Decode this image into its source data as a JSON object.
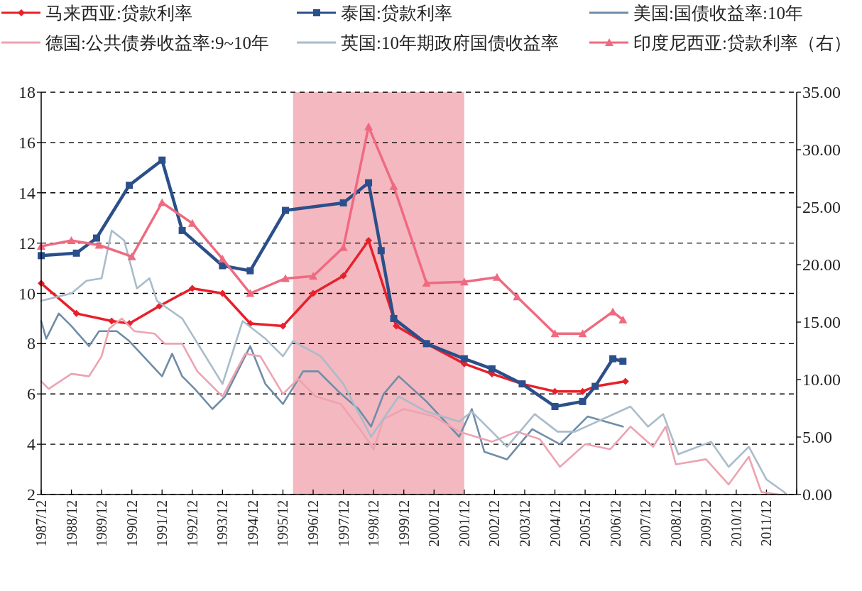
{
  "chart_data": {
    "type": "line",
    "xlim": [
      "1987-12",
      "2012-12"
    ],
    "xticks": [
      {
        "value": "1987-12",
        "label": "1987/12"
      },
      {
        "value": "1988-12",
        "label": "1988/12"
      },
      {
        "value": "1989-12",
        "label": "1989/12"
      },
      {
        "value": "1990-12",
        "label": "1990/12"
      },
      {
        "value": "1991-12",
        "label": "1991/12"
      },
      {
        "value": "1992-12",
        "label": "1992/12"
      },
      {
        "value": "1993-12",
        "label": "1993/12"
      },
      {
        "value": "1994-12",
        "label": "1994/12"
      },
      {
        "value": "1995-12",
        "label": "1995/12"
      },
      {
        "value": "1996-12",
        "label": "1996/12"
      },
      {
        "value": "1997-12",
        "label": "1997/12"
      },
      {
        "value": "1998-12",
        "label": "1998/12"
      },
      {
        "value": "1999-12",
        "label": "1999/12"
      },
      {
        "value": "2000-12",
        "label": "2000/12"
      },
      {
        "value": "2001-12",
        "label": "2001/12"
      },
      {
        "value": "2002-12",
        "label": "2002/12"
      },
      {
        "value": "2003-12",
        "label": "2003/12"
      },
      {
        "value": "2004-12",
        "label": "2004/12"
      },
      {
        "value": "2005-12",
        "label": "2005/12"
      },
      {
        "value": "2006-12",
        "label": "2006/12"
      },
      {
        "value": "2007-12",
        "label": "2007/12"
      },
      {
        "value": "2008-12",
        "label": "2008/12"
      },
      {
        "value": "2009-12",
        "label": "2009/12"
      },
      {
        "value": "2010-12",
        "label": "2010/12"
      },
      {
        "value": "2011-12",
        "label": "2011/12"
      },
      {
        "value": "2012-12",
        "label": null
      }
    ],
    "ylim": [
      2,
      18
    ],
    "yticks": [
      2,
      4,
      6,
      8,
      10,
      12,
      14,
      16,
      18
    ],
    "y2lim": [
      0,
      35
    ],
    "y2ticks": [
      {
        "value": 0,
        "label": "0.00"
      },
      {
        "value": 5,
        "label": "5.00"
      },
      {
        "value": 10,
        "label": "10.00"
      },
      {
        "value": 15,
        "label": "15.00"
      },
      {
        "value": 20,
        "label": "20.00"
      },
      {
        "value": 25,
        "label": "25.00"
      },
      {
        "value": 30,
        "label": "30.00"
      },
      {
        "value": 35,
        "label": "35.00"
      }
    ],
    "grid": "y",
    "legend": "top",
    "line_style": "solid",
    "bands": [
      {
        "axis": "x",
        "from": "1996-04",
        "to": "2001-12",
        "color": "#f4b8c0"
      }
    ],
    "series": [
      {
        "name": "马来西亚:贷款利率",
        "color": "#e8202a",
        "marker": "diamond",
        "x": [
          "1987-12",
          "1989-02",
          "1990-04",
          "1990-11",
          "1991-11",
          "1992-12",
          "1993-12",
          "1994-11",
          "1995-12",
          "1996-12",
          "1997-12",
          "1998-10",
          "1999-09",
          "2000-09",
          "2001-12",
          "2002-11",
          "2003-11",
          "2004-12",
          "2005-11",
          "2006-04",
          "2007-04"
        ],
        "values": [
          10.4,
          9.2,
          8.9,
          8.8,
          9.5,
          10.2,
          10.0,
          8.8,
          8.7,
          10.0,
          10.7,
          12.1,
          8.7,
          8.0,
          7.2,
          6.8,
          6.4,
          6.1,
          6.1,
          6.3,
          6.5
        ]
      },
      {
        "name": "泰国:贷款利率",
        "color": "#2b4f8a",
        "marker": "square",
        "x": [
          "1987-12",
          "1989-02",
          "1989-10",
          "1990-11",
          "1991-12",
          "1992-08",
          "1993-12",
          "1994-11",
          "1996-01",
          "1997-12",
          "1998-10",
          "1999-03",
          "1999-08",
          "2000-09",
          "2001-12",
          "2002-11",
          "2003-11",
          "2004-12",
          "2005-11",
          "2006-04",
          "2006-11",
          "2007-03"
        ],
        "values": [
          11.5,
          11.6,
          12.2,
          14.3,
          15.3,
          12.5,
          11.1,
          10.9,
          13.3,
          13.6,
          14.4,
          11.7,
          9.0,
          8.0,
          7.4,
          7.0,
          6.4,
          5.5,
          5.7,
          6.3,
          7.4,
          7.3
        ]
      },
      {
        "name": "美国:国债收益率:10年",
        "color": "#6f8da8",
        "marker": "none",
        "x": [
          "1987-12",
          "1988-02",
          "1988-07",
          "1988-12",
          "1989-07",
          "1989-11",
          "1990-06",
          "1990-11",
          "1991-12",
          "1992-04",
          "1992-08",
          "1993-01",
          "1993-08",
          "1994-01",
          "1994-11",
          "1995-05",
          "1995-12",
          "1996-08",
          "1997-02",
          "1997-10",
          "1998-06",
          "1998-11",
          "1999-04",
          "1999-10",
          "2000-09",
          "2001-10",
          "2002-03",
          "2002-08",
          "2003-05",
          "2004-03",
          "2005-02",
          "2006-01",
          "2007-03"
        ],
        "values": [
          8.9,
          8.2,
          9.2,
          8.7,
          7.9,
          8.5,
          8.5,
          8.1,
          6.7,
          7.6,
          6.7,
          6.2,
          5.4,
          5.9,
          7.9,
          6.4,
          5.6,
          6.9,
          6.9,
          6.1,
          5.4,
          4.7,
          6.0,
          6.7,
          5.7,
          4.3,
          5.4,
          3.7,
          3.4,
          4.6,
          4.0,
          5.1,
          4.7
        ]
      },
      {
        "name": "德国:公共债券收益率:9~10年",
        "color": "#eda3b1",
        "marker": "none",
        "x": [
          "1987-12",
          "1988-03",
          "1988-12",
          "1989-07",
          "1989-12",
          "1990-03",
          "1990-08",
          "1991-01",
          "1991-09",
          "1992-01",
          "1992-08",
          "1993-02",
          "1993-12",
          "1994-09",
          "1995-03",
          "1995-12",
          "1996-06",
          "1997-01",
          "1997-11",
          "1998-08",
          "1998-12",
          "1999-04",
          "1999-12",
          "2000-12",
          "2001-10",
          "2002-11",
          "2003-09",
          "2004-06",
          "2005-02",
          "2005-12",
          "2006-10",
          "2007-06",
          "2008-03",
          "2008-08",
          "2008-12",
          "2009-12",
          "2010-09",
          "2011-05",
          "2011-10",
          "2012-05"
        ],
        "values": [
          6.5,
          6.2,
          6.8,
          6.7,
          7.5,
          8.6,
          9.0,
          8.5,
          8.4,
          8.0,
          8.0,
          6.9,
          5.9,
          7.6,
          7.5,
          6.0,
          6.6,
          5.9,
          5.6,
          4.4,
          3.8,
          5.0,
          5.4,
          5.1,
          4.5,
          4.1,
          4.5,
          4.2,
          3.1,
          4.0,
          3.8,
          4.7,
          3.9,
          4.7,
          3.2,
          3.4,
          2.4,
          3.5,
          2.1,
          2.0
        ]
      },
      {
        "name": "英国:10年期政府国债收益率",
        "color": "#a9bccb",
        "marker": "none",
        "x": [
          "1987-12",
          "1988-12",
          "1989-06",
          "1989-12",
          "1990-04",
          "1990-09",
          "1991-02",
          "1991-07",
          "1991-10",
          "1992-08",
          "1993-12",
          "1994-08",
          "1995-05",
          "1995-12",
          "1996-04",
          "1997-03",
          "1997-12",
          "1998-11",
          "1999-10",
          "2000-09",
          "2001-10",
          "2002-03",
          "2003-05",
          "2004-04",
          "2005-01",
          "2005-08",
          "2007-06",
          "2008-01",
          "2008-07",
          "2009-01",
          "2010-02",
          "2010-09",
          "2011-05",
          "2011-12",
          "2012-07",
          "2012-08"
        ],
        "values": [
          9.7,
          10.0,
          10.5,
          10.6,
          12.5,
          12.1,
          10.2,
          10.6,
          9.7,
          9.0,
          6.4,
          8.9,
          8.2,
          7.5,
          8.1,
          7.5,
          6.4,
          4.3,
          5.9,
          5.3,
          4.9,
          5.3,
          3.9,
          5.2,
          4.5,
          4.5,
          5.5,
          4.7,
          5.2,
          3.6,
          4.1,
          3.1,
          3.9,
          2.6,
          2.1,
          2.0
        ]
      },
      {
        "name": "印度尼西亚:贷款利率（右）",
        "color": "#ef6a80",
        "marker": "triangle",
        "axis": "y2",
        "x": [
          "1987-12",
          "1988-12",
          "1989-11",
          "1990-12",
          "1991-12",
          "1992-12",
          "1993-12",
          "1994-11",
          "1996-01",
          "1996-12",
          "1997-12",
          "1998-10",
          "1999-08",
          "2000-09",
          "2001-12",
          "2003-01",
          "2003-09",
          "2004-12",
          "2005-11",
          "2006-11",
          "2007-03"
        ],
        "values": [
          21.6,
          22.1,
          21.7,
          20.7,
          25.4,
          23.6,
          20.5,
          17.5,
          18.8,
          19.0,
          21.5,
          32.0,
          26.8,
          18.4,
          18.5,
          18.9,
          17.2,
          14.0,
          14.0,
          15.9,
          15.2
        ]
      }
    ]
  }
}
